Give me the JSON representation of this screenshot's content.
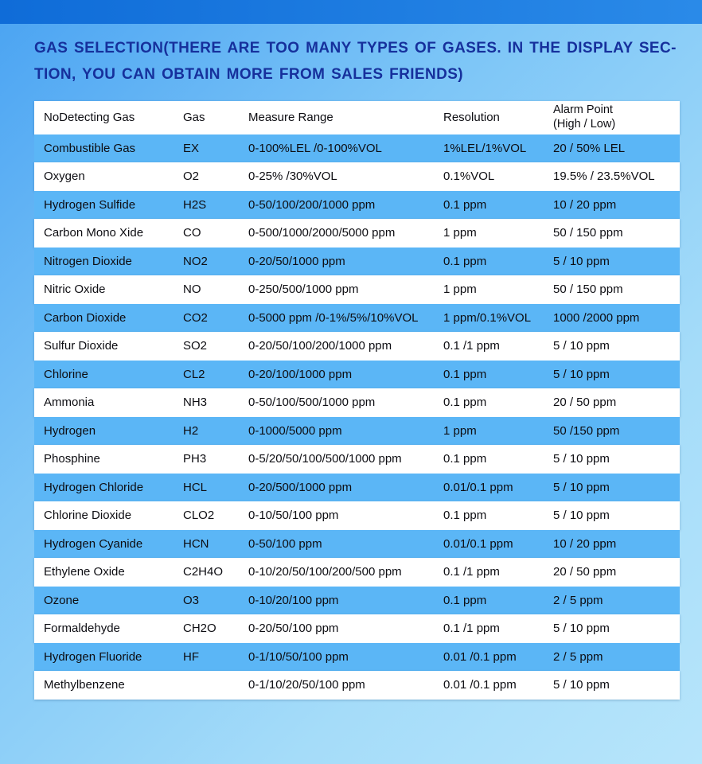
{
  "header": {
    "title_line1": "GAS SELECTION(THERE ARE TOO MANY TYPES OF GASES. IN THE DISPLAY SEC-",
    "title_line2": "TION, YOU CAN OBTAIN MORE FROM SALES FRIENDS)"
  },
  "colors": {
    "top_bar": "#1a79df",
    "background_start": "#4aa3f2",
    "background_end": "#b7e5fb",
    "row_blue": "#5bb6f6",
    "row_white": "#ffffff",
    "title_text": "#16309c",
    "table_text": "#0d0d12"
  },
  "table": {
    "headers": [
      "NoDetecting Gas",
      "Gas",
      "Measure Range",
      "Resolution"
    ],
    "alarm_header": {
      "line1": "Alarm Point",
      "line2": "(High / Low)"
    },
    "rows": [
      {
        "name": "Combustible Gas",
        "gas": "EX",
        "range": "0-100%LEL /0-100%VOL",
        "resolution": "1%LEL/1%VOL",
        "alarm": "20 / 50% LEL"
      },
      {
        "name": "Oxygen",
        "gas": "O2",
        "range": "0-25% /30%VOL",
        "resolution": "0.1%VOL",
        "alarm": "19.5% / 23.5%VOL"
      },
      {
        "name": "Hydrogen Sulfide",
        "gas": "H2S",
        "range": "0-50/100/200/1000 ppm",
        "resolution": "0.1 ppm",
        "alarm": "10 / 20 ppm"
      },
      {
        "name": "Carbon Mono  Xide",
        "gas": "CO",
        "range": "0-500/1000/2000/5000 ppm",
        "resolution": "1 ppm",
        "alarm": "50 / 150 ppm"
      },
      {
        "name": "Nitrogen Dioxide",
        "gas": "NO2",
        "range": "0-20/50/1000 ppm",
        "resolution": "0.1 ppm",
        "alarm": "5 / 10 ppm"
      },
      {
        "name": "Nitric Oxide",
        "gas": "NO",
        "range": "0-250/500/1000 ppm",
        "resolution": "1 ppm",
        "alarm": "50 / 150 ppm"
      },
      {
        "name": "Carbon Dioxide",
        "gas": "CO2",
        "range": "0-5000 ppm /0-1%/5%/10%VOL",
        "resolution": "1 ppm/0.1%VOL",
        "alarm": "1000 /2000 ppm"
      },
      {
        "name": "Sulfur Dioxide",
        "gas": "SO2",
        "range": "0-20/50/100/200/1000 ppm",
        "resolution": "0.1 /1 ppm",
        "alarm": "5 / 10 ppm"
      },
      {
        "name": "Chlorine",
        "gas": "CL2",
        "range": "0-20/100/1000 ppm",
        "resolution": "0.1 ppm",
        "alarm": "5 / 10 ppm"
      },
      {
        "name": "Ammonia",
        "gas": "NH3",
        "range": "0-50/100/500/1000 ppm",
        "resolution": "0.1 ppm",
        "alarm": "20 / 50 ppm"
      },
      {
        "name": "Hydrogen",
        "gas": "H2",
        "range": "0-1000/5000 ppm",
        "resolution": "1 ppm",
        "alarm": "50 /150 ppm"
      },
      {
        "name": "Phosphine",
        "gas": "PH3",
        "range": "0-5/20/50/100/500/1000 ppm",
        "resolution": "0.1 ppm",
        "alarm": "5 / 10 ppm"
      },
      {
        "name": "Hydrogen Chloride",
        "gas": "HCL",
        "range": "0-20/500/1000 ppm",
        "resolution": "0.01/0.1 ppm",
        "alarm": "5 / 10 ppm"
      },
      {
        "name": "Chlorine Dioxide",
        "gas": "CLO2",
        "range": "0-10/50/100 ppm",
        "resolution": "0.1 ppm",
        "alarm": "5 / 10 ppm"
      },
      {
        "name": "Hydrogen Cyanide",
        "gas": "HCN",
        "range": "0-50/100 ppm",
        "resolution": "0.01/0.1 ppm",
        "alarm": "10 / 20 ppm"
      },
      {
        "name": "Ethylene Oxide",
        "gas": "C2H4O",
        "range": "0-10/20/50/100/200/500 ppm",
        "resolution": "0.1 /1 ppm",
        "alarm": "20 / 50 ppm"
      },
      {
        "name": "Ozone",
        "gas": "O3",
        "range": "0-10/20/100 ppm",
        "resolution": "0.1 ppm",
        "alarm": "2 / 5 ppm"
      },
      {
        "name": "Formaldehyde",
        "gas": "CH2O",
        "range": "0-20/50/100 ppm",
        "resolution": "0.1 /1 ppm",
        "alarm": "5 / 10 ppm"
      },
      {
        "name": "Hydrogen Fluoride",
        "gas": "HF",
        "range": "0-1/10/50/100 ppm",
        "resolution": "0.01 /0.1 ppm",
        "alarm": "2 / 5 ppm"
      },
      {
        "name": "Methylbenzene",
        "gas": "",
        "range": "0-1/10/20/50/100 ppm",
        "resolution": "0.01 /0.1 ppm",
        "alarm": "5 / 10 ppm"
      }
    ]
  }
}
